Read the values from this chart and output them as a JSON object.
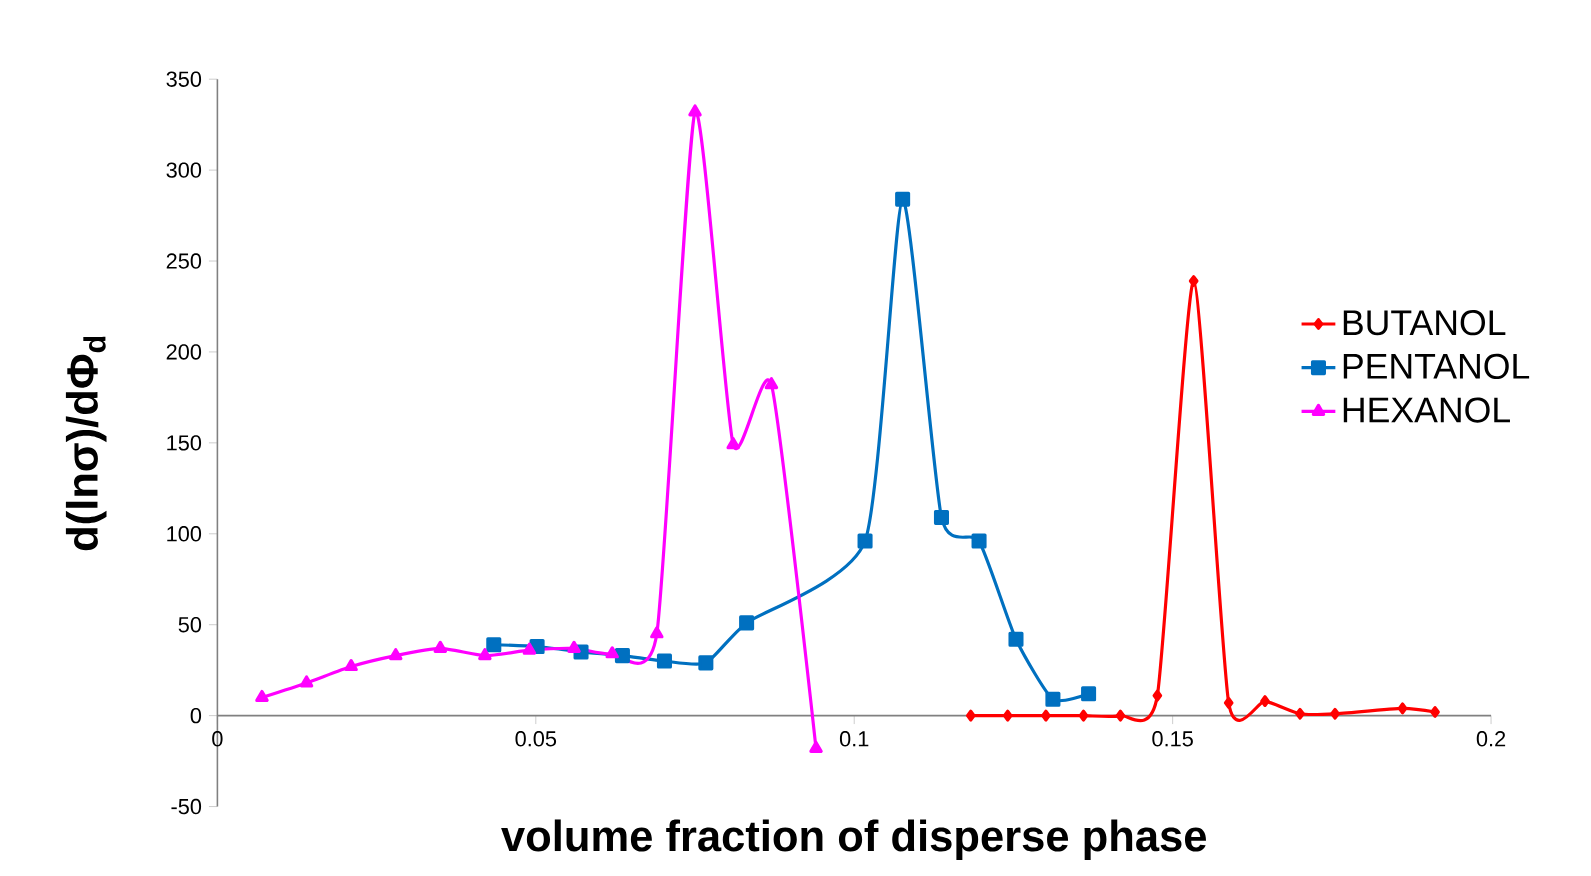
{
  "chart_data": {
    "type": "line",
    "xlabel": "volume fraction of disperse phase",
    "ylabel": "d(lnσ)/dΦ$_{d}$",
    "xlim": [
      0,
      0.2
    ],
    "xticks": [
      0,
      0.05,
      0.1,
      0.15,
      0.2
    ],
    "ylim": [
      -50,
      350
    ],
    "yticks": [
      -50,
      0,
      50,
      100,
      150,
      200,
      250,
      300,
      350
    ],
    "legend": "right",
    "grid": false,
    "series": [
      {
        "name": "BUTANOL",
        "color": "#ff0000",
        "marker": "diamond",
        "x": [
          0.1183,
          0.1241,
          0.1301,
          0.136,
          0.1418,
          0.1476,
          0.1533,
          0.1588,
          0.1645,
          0.17,
          0.1755,
          0.1861,
          0.1912
        ],
        "values": [
          0,
          0,
          0,
          0,
          0,
          11,
          239,
          7,
          8,
          1,
          1,
          4,
          2
        ]
      },
      {
        "name": "PENTANOL",
        "color": "#0070c0",
        "marker": "square",
        "x": [
          0.0434,
          0.0502,
          0.0571,
          0.0636,
          0.0702,
          0.0767,
          0.0831,
          0.1017,
          0.1076,
          0.1137,
          0.1196,
          0.1254,
          0.1312,
          0.1368
        ],
        "values": [
          39,
          38,
          35,
          33,
          30,
          29,
          51,
          96,
          284,
          109,
          96,
          42,
          9,
          12
        ]
      },
      {
        "name": "HEXANOL",
        "color": "#ff00ff",
        "marker": "triangle",
        "x": [
          0.007,
          0.014,
          0.021,
          0.028,
          0.035,
          0.042,
          0.049,
          0.056,
          0.062,
          0.069,
          0.075,
          0.081,
          0.087,
          0.094
        ],
        "values": [
          10,
          18,
          27,
          33,
          37,
          33,
          36,
          37,
          34,
          45,
          332,
          149,
          182,
          -18
        ]
      }
    ]
  }
}
